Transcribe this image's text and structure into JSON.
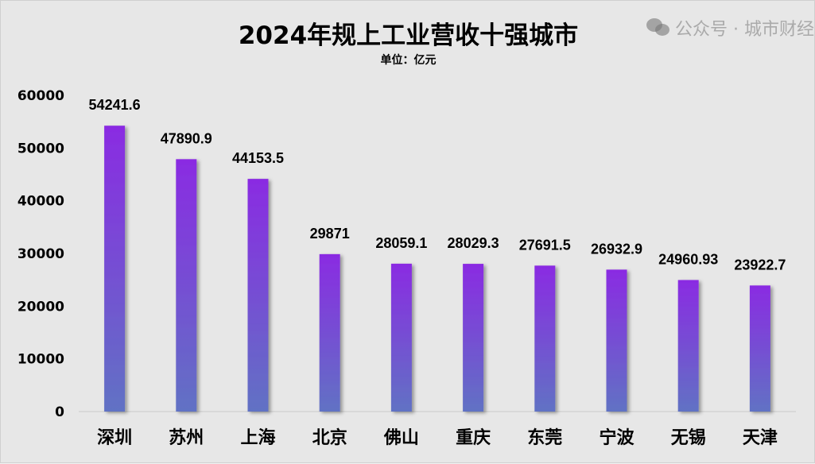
{
  "chart_data": {
    "type": "bar",
    "title": "2024年规上工业营收十强城市",
    "subtitle": "单位：亿元",
    "categories": [
      "深圳",
      "苏州",
      "上海",
      "北京",
      "佛山",
      "重庆",
      "东莞",
      "宁波",
      "无锡",
      "天津"
    ],
    "values": [
      54241.6,
      47890.9,
      44153.5,
      29871,
      28059.1,
      28029.3,
      27691.5,
      26932.9,
      24960.93,
      23922.7
    ],
    "data_labels": [
      "54241.6",
      "47890.9",
      "44153.5",
      "29871",
      "28059.1",
      "28029.3",
      "27691.5",
      "26932.9",
      "24960.93",
      "23922.7"
    ],
    "ylim": [
      0,
      60000
    ],
    "yticks": [
      "0",
      "10000",
      "20000",
      "30000",
      "40000",
      "50000",
      "60000"
    ],
    "grid": false,
    "legend": "none",
    "colors": {
      "bar_top": "#8a2be2",
      "bar_bottom": "#6172c4",
      "background": "#e7e7e7"
    }
  },
  "watermark": "公众号 · 城市财经"
}
